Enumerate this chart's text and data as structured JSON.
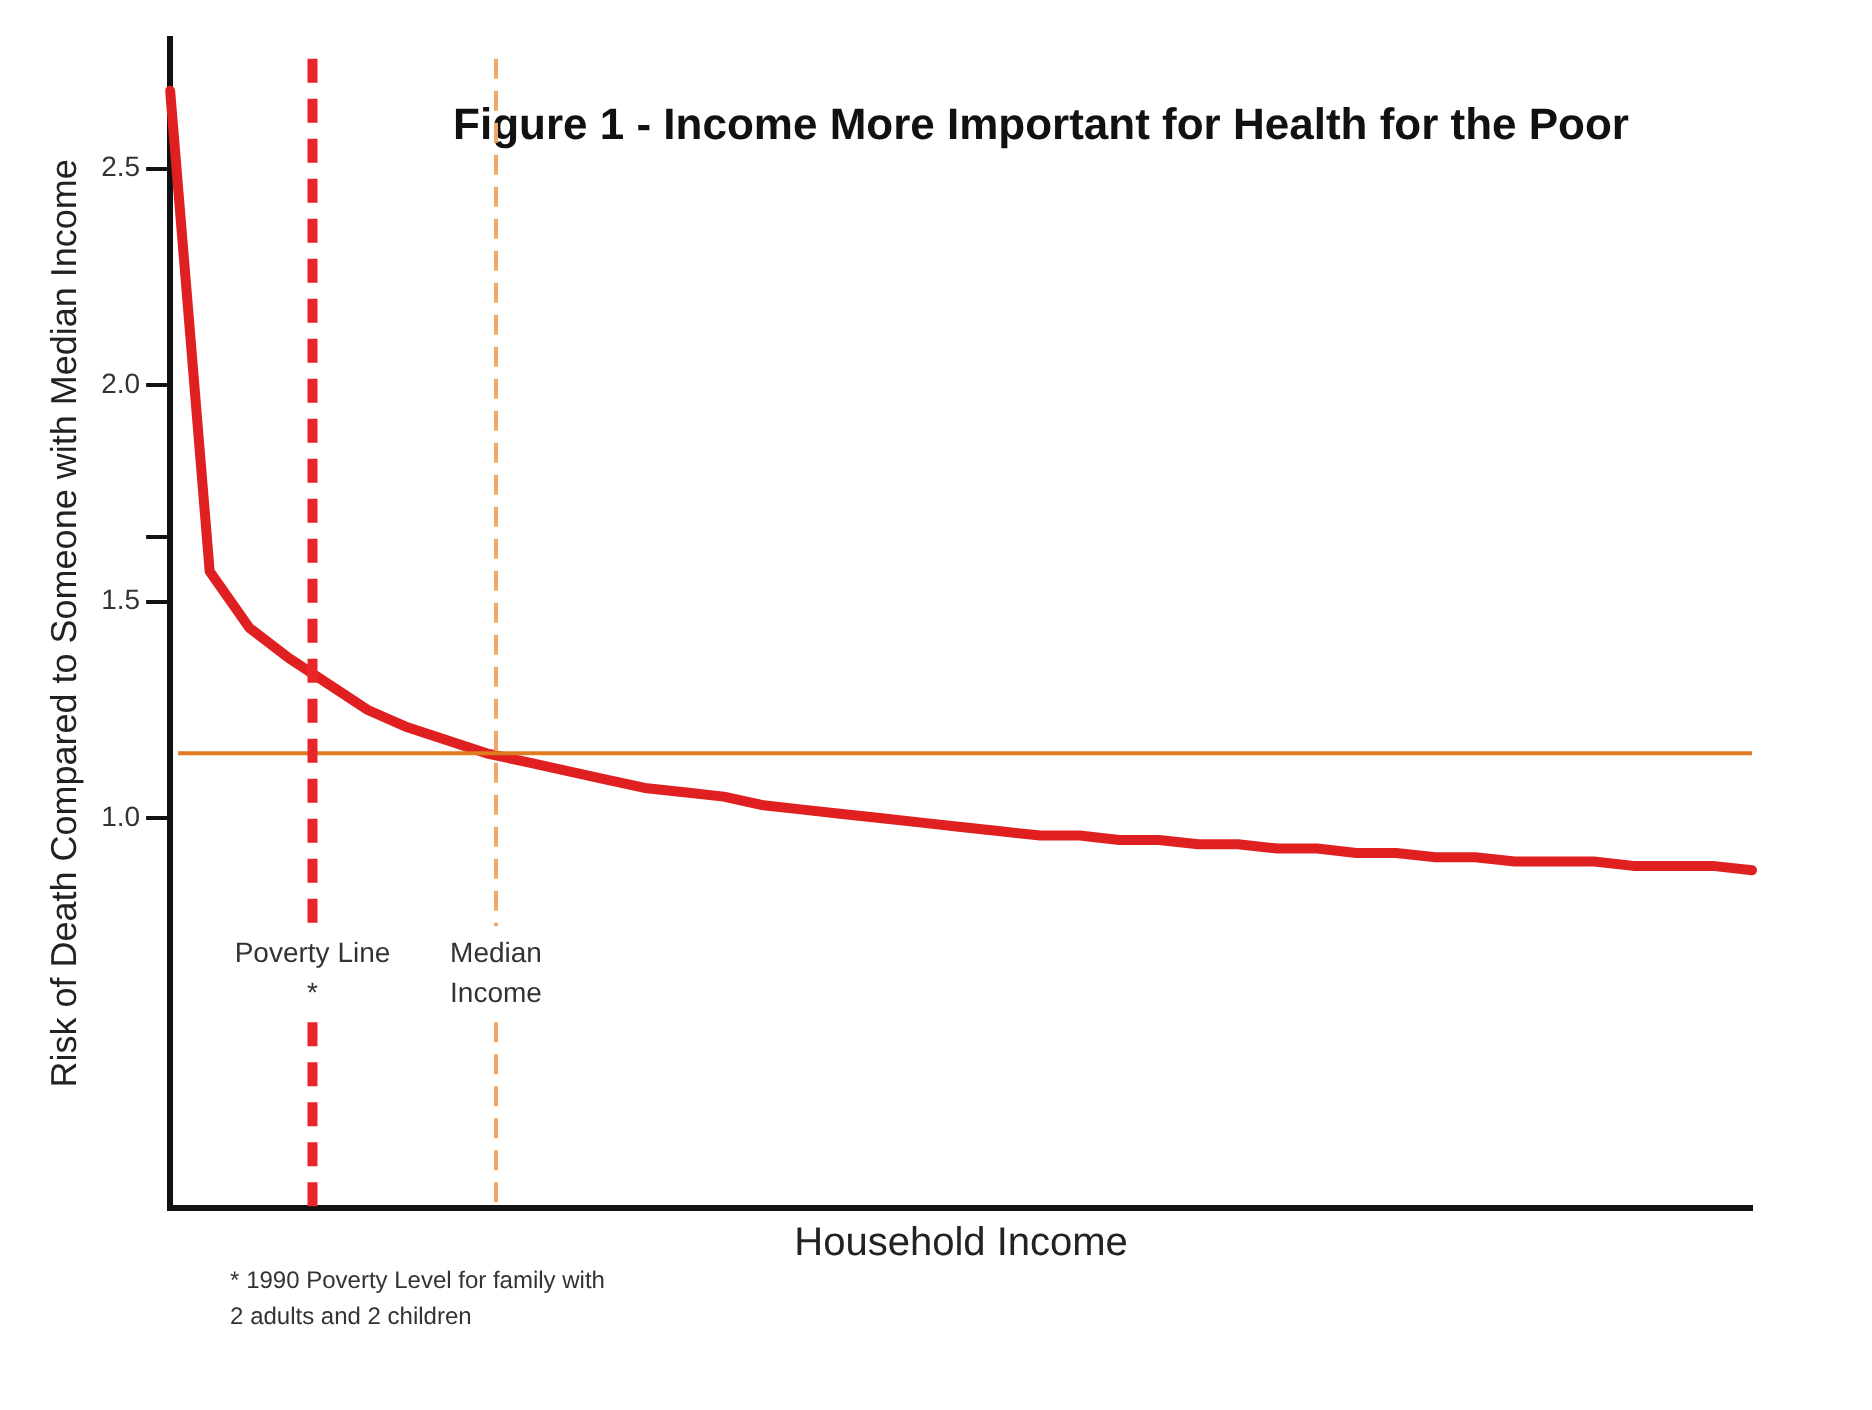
{
  "chart_data": {
    "type": "line",
    "title": "Figure 1 - Income More Important for Health for the Poor",
    "xlabel": "Household Income",
    "ylabel": "Risk of Death Compared to Someone with Median Income",
    "categories": [
      null,
      null,
      null,
      null,
      null,
      null,
      null,
      null,
      null,
      null,
      null,
      null,
      null,
      null,
      null,
      null,
      null,
      null,
      null,
      null,
      null,
      null,
      null,
      null,
      null,
      null,
      null,
      null,
      null,
      null,
      null,
      null,
      null,
      null,
      null,
      null,
      null,
      null,
      null,
      null,
      null
    ],
    "series": [
      {
        "color": "#e02020",
        "values": [
          2.68,
          1.57,
          1.44,
          1.37,
          1.31,
          1.25,
          1.21,
          1.18,
          1.15,
          1.13,
          1.11,
          1.09,
          1.07,
          1.06,
          1.05,
          1.03,
          1.02,
          1.01,
          1.0,
          0.99,
          0.98,
          0.97,
          0.96,
          0.96,
          0.95,
          0.95,
          0.94,
          0.94,
          0.93,
          0.93,
          0.92,
          0.92,
          0.91,
          0.91,
          0.9,
          0.9,
          0.9,
          0.89,
          0.89,
          0.89,
          0.88
        ]
      }
    ],
    "ylim": [
      0.1,
      2.8
    ],
    "yticks": [
      {
        "value": 1,
        "label": "1.0"
      },
      {
        "value": 1.5,
        "label": "1.5"
      },
      {
        "value": 1.65,
        "label": null
      },
      {
        "value": 2,
        "label": "2.0"
      },
      {
        "value": 2.5,
        "label": "2.5"
      }
    ],
    "tick_labels": "y",
    "grid": false,
    "legend": false,
    "marker": "none",
    "line_style": "solid",
    "ref_lines": [
      {
        "axis": "y",
        "value": 1.15,
        "label": null,
        "color": "#e07b20",
        "line_style": "solid"
      }
    ],
    "annotations": [
      "Poverty Line *",
      "Median Income",
      "* 1990 Poverty Level for family with 2 adults and 2 children"
    ]
  }
}
